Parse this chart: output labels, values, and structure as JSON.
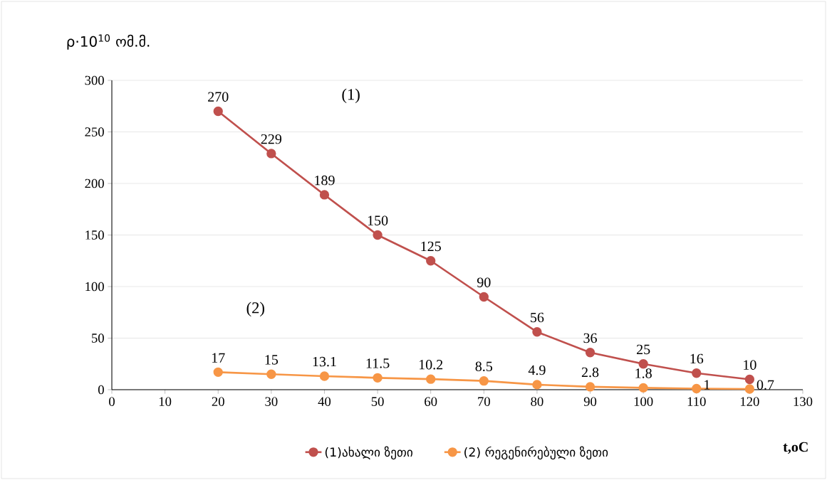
{
  "chart_data": {
    "type": "line",
    "ylabel": "ρ·10$^{10}$ ომ.მ.",
    "xlabel": "**t,oC**",
    "x": [
      20,
      30,
      40,
      50,
      60,
      70,
      80,
      90,
      100,
      110,
      120
    ],
    "series": [
      {
        "name": "(1)ახალი ზეთი",
        "color": "#c0504d",
        "values": [
          270,
          229,
          189,
          150,
          125,
          90,
          56,
          36,
          25,
          16,
          10
        ]
      },
      {
        "name": "(2) რეგენირებული ზეთი",
        "color": "#f79646",
        "values": [
          17,
          15,
          13.1,
          11.5,
          10.2,
          8.5,
          4.9,
          2.8,
          1.8,
          1,
          0.7
        ]
      }
    ],
    "xlim": [
      0,
      130
    ],
    "xticks": [
      0,
      10,
      20,
      30,
      40,
      50,
      60,
      70,
      80,
      90,
      100,
      110,
      120,
      130
    ],
    "ylim": [
      0,
      300
    ],
    "yticks": [
      0,
      50,
      100,
      150,
      200,
      250,
      300
    ],
    "grid": "y",
    "legend": "bottom",
    "marker": "circle",
    "line_style": "solid",
    "data_labels": true,
    "annotations": [
      "(1)",
      "(2)"
    ]
  }
}
